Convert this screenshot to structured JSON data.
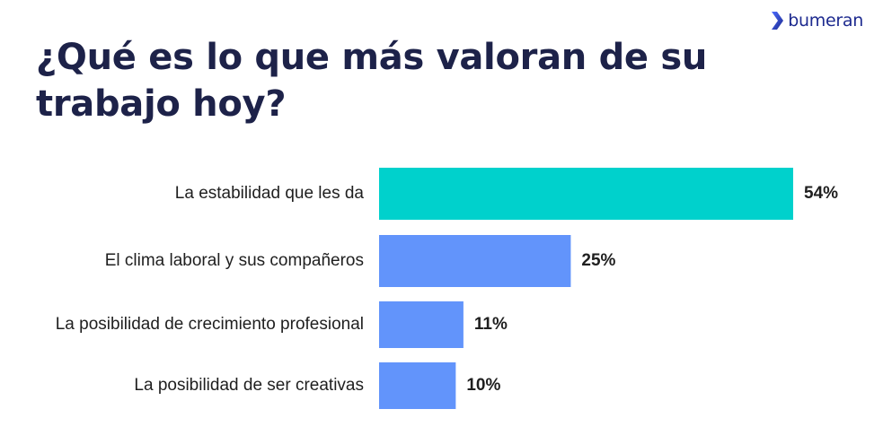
{
  "brand": {
    "name": "bumeran",
    "logo_icon": "chevron-logo-icon"
  },
  "colors": {
    "title": "#1d2249",
    "highlight_bar": "#00d1cc",
    "bar": "#6294fb",
    "brand_blue": "#1d2a8f",
    "text": "#1f1f1f"
  },
  "chart_data": {
    "type": "bar",
    "orientation": "horizontal",
    "title": "¿Qué es lo que más valoran de su trabajo hoy?",
    "categories": [
      "La estabilidad que les da",
      "El clima laboral y sus compañeros",
      "La posibilidad de crecimiento profesional",
      "La posibilidad de ser creativas"
    ],
    "values": [
      54,
      25,
      11,
      10
    ],
    "value_labels": [
      "54%",
      "25%",
      "11%",
      "10%"
    ],
    "unit": "%",
    "highlight_index": 0,
    "xlim": [
      0,
      54
    ],
    "grid": false,
    "legend": false
  }
}
